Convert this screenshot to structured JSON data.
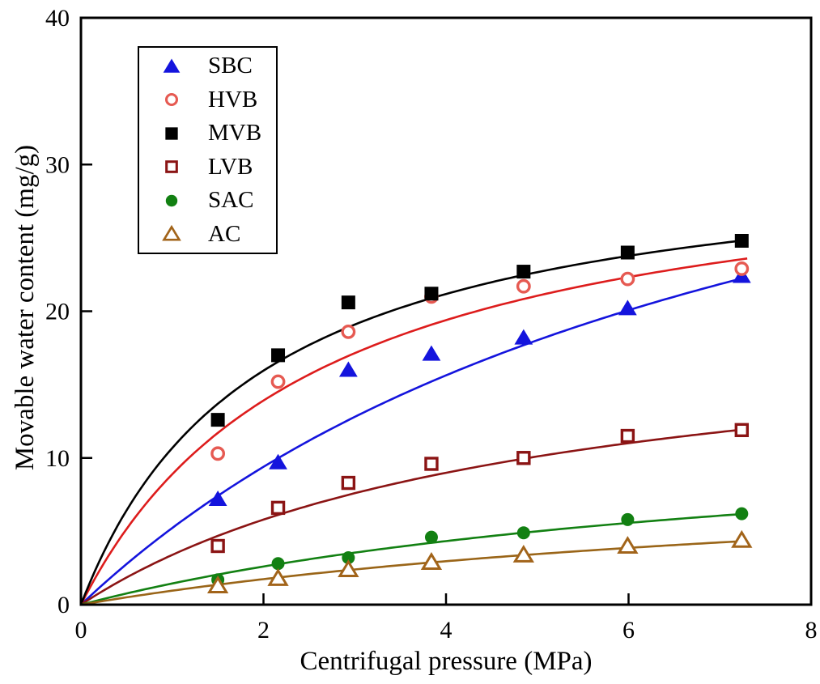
{
  "figure": {
    "background_color": "#ffffff",
    "axis_color": "#000000"
  },
  "chart_data": {
    "type": "scatter",
    "title": "",
    "xlabel": "Centrifugal pressure (MPa)",
    "ylabel": "Movable water content (mg/g)",
    "xlim": [
      0,
      8
    ],
    "ylim": [
      0,
      40
    ],
    "x_ticks": [
      0,
      2,
      4,
      6,
      8
    ],
    "y_ticks": [
      0,
      10,
      20,
      30,
      40
    ],
    "grid": false,
    "legend_position": "upper-left-inside",
    "x": [
      1.5,
      2.16,
      2.93,
      3.84,
      4.85,
      5.99,
      7.24
    ],
    "fit_model": "langmuir y = a*x/(b+x), curves drawn from x=0 to x=7.3",
    "fit_x_range": [
      0,
      7.3
    ],
    "series": [
      {
        "name": "SBC",
        "marker": "triangle-filled",
        "color": "#1414dd",
        "marker_color": "#1414dd",
        "values": [
          7.2,
          9.7,
          16.0,
          17.1,
          18.2,
          20.2,
          22.4
        ],
        "fit": {
          "a": 46.5,
          "b": 7.9
        }
      },
      {
        "name": "HVB",
        "marker": "circle-open",
        "color": "#dd1c1c",
        "marker_color": "#e65a52",
        "values": [
          10.3,
          15.2,
          18.6,
          21.0,
          21.7,
          22.2,
          22.9
        ],
        "fit": {
          "a": 32.0,
          "b": 2.6
        }
      },
      {
        "name": "MVB",
        "marker": "square-filled",
        "color": "#000000",
        "marker_color": "#000000",
        "values": [
          12.6,
          17.0,
          20.6,
          21.2,
          22.7,
          24.0,
          24.8
        ],
        "fit": {
          "a": 31.5,
          "b": 1.95
        }
      },
      {
        "name": "LVB",
        "marker": "square-open",
        "color": "#8b1414",
        "marker_color": "#8b1414",
        "values": [
          4.0,
          6.6,
          8.3,
          9.6,
          10.0,
          11.5,
          11.9
        ],
        "fit": {
          "a": 20.0,
          "b": 4.9
        }
      },
      {
        "name": "SAC",
        "marker": "circle-filled",
        "color": "#128012",
        "marker_color": "#128012",
        "values": [
          1.7,
          2.8,
          3.2,
          4.6,
          4.9,
          5.8,
          6.2
        ],
        "fit": {
          "a": 13.0,
          "b": 8.0
        }
      },
      {
        "name": "AC",
        "marker": "triangle-open",
        "color": "#9a6518",
        "marker_color": "#a2641a",
        "values": [
          1.3,
          1.8,
          2.4,
          2.9,
          3.4,
          4.0,
          4.4
        ],
        "fit": {
          "a": 10.0,
          "b": 9.5
        }
      }
    ]
  }
}
